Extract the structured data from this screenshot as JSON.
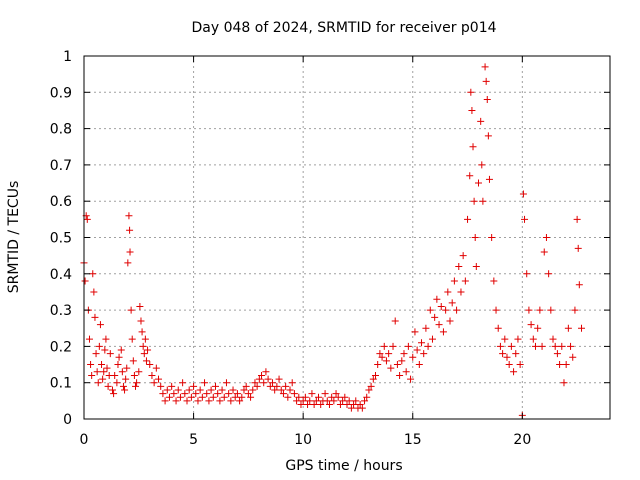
{
  "chart_data": {
    "type": "scatter",
    "title": "Day 048 of 2024, SRMTID for receiver p014",
    "xlabel": "GPS time / hours",
    "ylabel": "SRMTID / TECUs",
    "xlim": [
      0,
      24
    ],
    "ylim": [
      0,
      1
    ],
    "x_ticks": [
      0,
      5,
      10,
      15,
      20
    ],
    "x_tick_labels": [
      "0",
      "5",
      "10",
      "15",
      "20"
    ],
    "y_ticks": [
      0,
      0.1,
      0.2,
      0.3,
      0.4,
      0.5,
      0.6,
      0.7,
      0.8,
      0.9,
      1
    ],
    "y_tick_labels": [
      "0",
      "0.1",
      "0.2",
      "0.3",
      "0.4",
      "0.5",
      "0.6",
      "0.7",
      "0.8",
      "0.9",
      "1"
    ],
    "grid": true,
    "marker": "+",
    "color": "#e00000",
    "series": [
      {
        "name": "SRMTID",
        "points": [
          [
            0.0,
            0.43
          ],
          [
            0.05,
            0.38
          ],
          [
            0.1,
            0.56
          ],
          [
            0.15,
            0.55
          ],
          [
            0.2,
            0.3
          ],
          [
            0.25,
            0.22
          ],
          [
            0.3,
            0.15
          ],
          [
            0.35,
            0.12
          ],
          [
            0.4,
            0.4
          ],
          [
            0.45,
            0.35
          ],
          [
            0.5,
            0.28
          ],
          [
            0.55,
            0.18
          ],
          [
            0.6,
            0.13
          ],
          [
            0.65,
            0.1
          ],
          [
            0.7,
            0.2
          ],
          [
            0.75,
            0.26
          ],
          [
            0.8,
            0.15
          ],
          [
            0.85,
            0.11
          ],
          [
            0.9,
            0.13
          ],
          [
            0.95,
            0.19
          ],
          [
            1.0,
            0.22
          ],
          [
            1.05,
            0.14
          ],
          [
            1.1,
            0.09
          ],
          [
            1.15,
            0.12
          ],
          [
            1.2,
            0.18
          ],
          [
            1.3,
            0.08
          ],
          [
            1.35,
            0.07
          ],
          [
            1.4,
            0.12
          ],
          [
            1.5,
            0.1
          ],
          [
            1.55,
            0.15
          ],
          [
            1.6,
            0.17
          ],
          [
            1.7,
            0.19
          ],
          [
            1.75,
            0.13
          ],
          [
            1.8,
            0.09
          ],
          [
            1.85,
            0.08
          ],
          [
            1.9,
            0.11
          ],
          [
            1.95,
            0.14
          ],
          [
            2.0,
            0.43
          ],
          [
            2.05,
            0.56
          ],
          [
            2.08,
            0.52
          ],
          [
            2.1,
            0.46
          ],
          [
            2.15,
            0.3
          ],
          [
            2.2,
            0.22
          ],
          [
            2.25,
            0.16
          ],
          [
            2.3,
            0.12
          ],
          [
            2.35,
            0.09
          ],
          [
            2.4,
            0.1
          ],
          [
            2.5,
            0.13
          ],
          [
            2.55,
            0.31
          ],
          [
            2.6,
            0.27
          ],
          [
            2.65,
            0.24
          ],
          [
            2.7,
            0.2
          ],
          [
            2.75,
            0.18
          ],
          [
            2.8,
            0.22
          ],
          [
            2.85,
            0.16
          ],
          [
            2.9,
            0.19
          ],
          [
            3.0,
            0.15
          ],
          [
            3.1,
            0.12
          ],
          [
            3.2,
            0.1
          ],
          [
            3.3,
            0.14
          ],
          [
            3.4,
            0.11
          ],
          [
            3.5,
            0.09
          ],
          [
            3.6,
            0.07
          ],
          [
            3.7,
            0.05
          ],
          [
            3.8,
            0.08
          ],
          [
            3.9,
            0.06
          ],
          [
            4.0,
            0.09
          ],
          [
            4.1,
            0.07
          ],
          [
            4.2,
            0.05
          ],
          [
            4.3,
            0.08
          ],
          [
            4.4,
            0.06
          ],
          [
            4.5,
            0.1
          ],
          [
            4.6,
            0.07
          ],
          [
            4.7,
            0.05
          ],
          [
            4.8,
            0.08
          ],
          [
            4.9,
            0.06
          ],
          [
            5.0,
            0.09
          ],
          [
            5.1,
            0.07
          ],
          [
            5.2,
            0.05
          ],
          [
            5.3,
            0.08
          ],
          [
            5.4,
            0.06
          ],
          [
            5.5,
            0.1
          ],
          [
            5.6,
            0.07
          ],
          [
            5.7,
            0.05
          ],
          [
            5.8,
            0.08
          ],
          [
            5.9,
            0.06
          ],
          [
            6.0,
            0.09
          ],
          [
            6.1,
            0.07
          ],
          [
            6.2,
            0.05
          ],
          [
            6.3,
            0.08
          ],
          [
            6.4,
            0.06
          ],
          [
            6.5,
            0.1
          ],
          [
            6.6,
            0.07
          ],
          [
            6.7,
            0.05
          ],
          [
            6.8,
            0.08
          ],
          [
            6.9,
            0.06
          ],
          [
            7.0,
            0.07
          ],
          [
            7.1,
            0.05
          ],
          [
            7.2,
            0.06
          ],
          [
            7.3,
            0.08
          ],
          [
            7.4,
            0.09
          ],
          [
            7.5,
            0.07
          ],
          [
            7.6,
            0.06
          ],
          [
            7.7,
            0.08
          ],
          [
            7.8,
            0.1
          ],
          [
            7.9,
            0.09
          ],
          [
            8.0,
            0.11
          ],
          [
            8.1,
            0.12
          ],
          [
            8.2,
            0.1
          ],
          [
            8.3,
            0.13
          ],
          [
            8.4,
            0.11
          ],
          [
            8.5,
            0.09
          ],
          [
            8.6,
            0.1
          ],
          [
            8.7,
            0.08
          ],
          [
            8.8,
            0.09
          ],
          [
            8.9,
            0.11
          ],
          [
            9.0,
            0.08
          ],
          [
            9.1,
            0.07
          ],
          [
            9.2,
            0.09
          ],
          [
            9.3,
            0.06
          ],
          [
            9.4,
            0.08
          ],
          [
            9.5,
            0.1
          ],
          [
            9.6,
            0.07
          ],
          [
            9.7,
            0.05
          ],
          [
            9.8,
            0.06
          ],
          [
            9.9,
            0.04
          ],
          [
            10.0,
            0.05
          ],
          [
            10.1,
            0.06
          ],
          [
            10.2,
            0.04
          ],
          [
            10.3,
            0.05
          ],
          [
            10.4,
            0.07
          ],
          [
            10.5,
            0.04
          ],
          [
            10.6,
            0.05
          ],
          [
            10.7,
            0.06
          ],
          [
            10.8,
            0.04
          ],
          [
            10.9,
            0.05
          ],
          [
            11.0,
            0.07
          ],
          [
            11.1,
            0.05
          ],
          [
            11.2,
            0.04
          ],
          [
            11.3,
            0.06
          ],
          [
            11.4,
            0.05
          ],
          [
            11.5,
            0.07
          ],
          [
            11.6,
            0.06
          ],
          [
            11.7,
            0.04
          ],
          [
            11.8,
            0.05
          ],
          [
            11.9,
            0.06
          ],
          [
            12.0,
            0.04
          ],
          [
            12.1,
            0.05
          ],
          [
            12.2,
            0.03
          ],
          [
            12.3,
            0.04
          ],
          [
            12.4,
            0.05
          ],
          [
            12.5,
            0.03
          ],
          [
            12.6,
            0.04
          ],
          [
            12.7,
            0.03
          ],
          [
            12.8,
            0.05
          ],
          [
            12.9,
            0.06
          ],
          [
            13.0,
            0.08
          ],
          [
            13.1,
            0.09
          ],
          [
            13.2,
            0.11
          ],
          [
            13.3,
            0.12
          ],
          [
            13.4,
            0.15
          ],
          [
            13.5,
            0.18
          ],
          [
            13.6,
            0.17
          ],
          [
            13.7,
            0.2
          ],
          [
            13.8,
            0.16
          ],
          [
            13.9,
            0.18
          ],
          [
            14.0,
            0.14
          ],
          [
            14.1,
            0.2
          ],
          [
            14.2,
            0.27
          ],
          [
            14.3,
            0.15
          ],
          [
            14.4,
            0.12
          ],
          [
            14.5,
            0.16
          ],
          [
            14.6,
            0.18
          ],
          [
            14.7,
            0.13
          ],
          [
            14.8,
            0.2
          ],
          [
            14.9,
            0.11
          ],
          [
            15.0,
            0.17
          ],
          [
            15.1,
            0.24
          ],
          [
            15.2,
            0.19
          ],
          [
            15.3,
            0.15
          ],
          [
            15.4,
            0.21
          ],
          [
            15.5,
            0.18
          ],
          [
            15.6,
            0.25
          ],
          [
            15.7,
            0.2
          ],
          [
            15.8,
            0.3
          ],
          [
            15.9,
            0.22
          ],
          [
            16.0,
            0.28
          ],
          [
            16.1,
            0.33
          ],
          [
            16.2,
            0.26
          ],
          [
            16.3,
            0.31
          ],
          [
            16.4,
            0.24
          ],
          [
            16.5,
            0.3
          ],
          [
            16.6,
            0.35
          ],
          [
            16.7,
            0.27
          ],
          [
            16.8,
            0.32
          ],
          [
            16.9,
            0.38
          ],
          [
            17.0,
            0.3
          ],
          [
            17.1,
            0.42
          ],
          [
            17.2,
            0.35
          ],
          [
            17.3,
            0.45
          ],
          [
            17.4,
            0.38
          ],
          [
            17.5,
            0.55
          ],
          [
            17.6,
            0.67
          ],
          [
            17.65,
            0.9
          ],
          [
            17.7,
            0.85
          ],
          [
            17.75,
            0.75
          ],
          [
            17.8,
            0.6
          ],
          [
            17.85,
            0.5
          ],
          [
            17.9,
            0.42
          ],
          [
            18.0,
            0.65
          ],
          [
            18.1,
            0.82
          ],
          [
            18.15,
            0.7
          ],
          [
            18.2,
            0.6
          ],
          [
            18.3,
            0.97
          ],
          [
            18.35,
            0.93
          ],
          [
            18.4,
            0.88
          ],
          [
            18.45,
            0.78
          ],
          [
            18.5,
            0.66
          ],
          [
            18.6,
            0.5
          ],
          [
            18.7,
            0.38
          ],
          [
            18.8,
            0.3
          ],
          [
            18.9,
            0.25
          ],
          [
            19.0,
            0.2
          ],
          [
            19.1,
            0.18
          ],
          [
            19.2,
            0.22
          ],
          [
            19.3,
            0.17
          ],
          [
            19.4,
            0.15
          ],
          [
            19.5,
            0.2
          ],
          [
            19.6,
            0.13
          ],
          [
            19.7,
            0.18
          ],
          [
            19.8,
            0.22
          ],
          [
            19.9,
            0.15
          ],
          [
            20.0,
            0.01
          ],
          [
            20.05,
            0.62
          ],
          [
            20.1,
            0.55
          ],
          [
            20.2,
            0.4
          ],
          [
            20.3,
            0.3
          ],
          [
            20.4,
            0.26
          ],
          [
            20.5,
            0.22
          ],
          [
            20.6,
            0.2
          ],
          [
            20.7,
            0.25
          ],
          [
            20.8,
            0.3
          ],
          [
            20.9,
            0.2
          ],
          [
            21.0,
            0.46
          ],
          [
            21.1,
            0.5
          ],
          [
            21.2,
            0.4
          ],
          [
            21.3,
            0.3
          ],
          [
            21.4,
            0.22
          ],
          [
            21.5,
            0.2
          ],
          [
            21.6,
            0.18
          ],
          [
            21.7,
            0.15
          ],
          [
            21.8,
            0.2
          ],
          [
            21.9,
            0.1
          ],
          [
            22.0,
            0.15
          ],
          [
            22.1,
            0.25
          ],
          [
            22.2,
            0.2
          ],
          [
            22.3,
            0.17
          ],
          [
            22.4,
            0.3
          ],
          [
            22.5,
            0.55
          ],
          [
            22.55,
            0.47
          ],
          [
            22.6,
            0.37
          ],
          [
            22.7,
            0.25
          ]
        ]
      }
    ]
  }
}
